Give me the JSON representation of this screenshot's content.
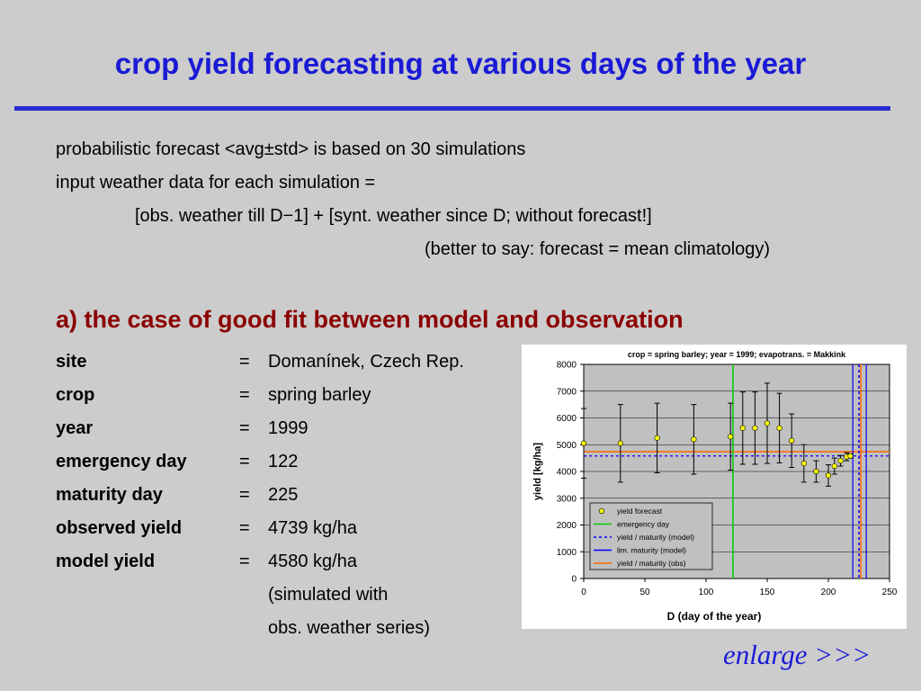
{
  "title": "crop yield forecasting at various days of the year",
  "intro": {
    "line1": "probabilistic forecast <avg±std> is based on 30 simulations",
    "line2": "input weather data for each simulation =",
    "line3": "[obs. weather till D−1] + [synt. weather since D; without forecast!]",
    "line4": "(better to say: forecast = mean climatology)"
  },
  "section_heading": "a) the case of good fit between model and observation",
  "properties": [
    {
      "key": "site",
      "eq": "=",
      "value": "Domanínek, Czech Rep."
    },
    {
      "key": "crop",
      "eq": "=",
      "value": "spring barley"
    },
    {
      "key": "year",
      "eq": "=",
      "value": "1999"
    },
    {
      "key": "emergency day",
      "eq": "=",
      "value": "122"
    },
    {
      "key": "maturity day",
      "eq": "=",
      "value": "225"
    },
    {
      "key": "observed yield",
      "eq": "=",
      "value": "4739  kg/ha"
    },
    {
      "key": "model yield",
      "eq": "=",
      "value": "4580  kg/ha"
    }
  ],
  "model_note": {
    "line1": "(simulated with",
    "line2": "obs. weather series)"
  },
  "enlarge_link": "enlarge >>>",
  "colors": {
    "title": "#1a1ad6",
    "section": "#8b0000",
    "plot_bg": "#c0c0c0",
    "forecast_point": "#ffff00",
    "emergency": "#00cc00",
    "model": "#0000ff",
    "obs": "#ff6600"
  },
  "chart_data": {
    "type": "scatter",
    "title": "crop = spring barley; year = 1999; evapotrans. = Makkink",
    "xlabel": "D  (day of the year)",
    "ylabel": "yield  [kg/ha]",
    "xlim": [
      0,
      250
    ],
    "ylim": [
      0,
      8000
    ],
    "x_ticks": [
      "0",
      "50",
      "100",
      "150",
      "200",
      "250"
    ],
    "y_ticks": [
      "0",
      "1000",
      "2000",
      "3000",
      "4000",
      "5000",
      "6000",
      "7000",
      "8000"
    ],
    "grid": true,
    "legend_position": "bottom-left",
    "legend": [
      "yield forecast",
      "emergency day",
      "yield / maturity (model)",
      "lim. maturity (model)",
      "yield / maturity (obs)"
    ],
    "series": [
      {
        "name": "yield forecast",
        "points": [
          {
            "x": 0,
            "y": 5050,
            "err": 1300
          },
          {
            "x": 30,
            "y": 5050,
            "err": 1450
          },
          {
            "x": 60,
            "y": 5250,
            "err": 1300
          },
          {
            "x": 90,
            "y": 5200,
            "err": 1300
          },
          {
            "x": 120,
            "y": 5300,
            "err": 1250
          },
          {
            "x": 130,
            "y": 5620,
            "err": 1350
          },
          {
            "x": 140,
            "y": 5620,
            "err": 1350
          },
          {
            "x": 150,
            "y": 5800,
            "err": 1500
          },
          {
            "x": 160,
            "y": 5620,
            "err": 1300
          },
          {
            "x": 170,
            "y": 5150,
            "err": 1000
          },
          {
            "x": 180,
            "y": 4300,
            "err": 700
          },
          {
            "x": 190,
            "y": 4000,
            "err": 400
          },
          {
            "x": 200,
            "y": 3850,
            "err": 400
          },
          {
            "x": 205,
            "y": 4200,
            "err": 300
          },
          {
            "x": 210,
            "y": 4400,
            "err": 200
          },
          {
            "x": 215,
            "y": 4550,
            "err": 150
          },
          {
            "x": 218,
            "y": 4580,
            "err": 80
          }
        ]
      }
    ],
    "emergency_day": 122,
    "model_maturity_day": 225,
    "model_yield": 4580,
    "lim_maturity_days": [
      220,
      231
    ],
    "observed_maturity_day": 225,
    "observed_yield": 4739
  }
}
